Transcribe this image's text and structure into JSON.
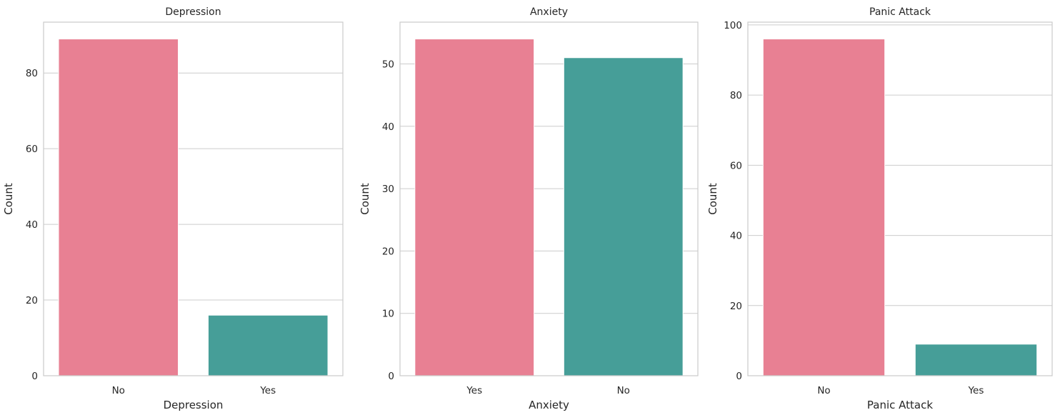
{
  "colors": {
    "bar_primary": "#e88093",
    "bar_secondary": "#469e98",
    "grid": "#cccccc",
    "text": "#262626"
  },
  "chart_data": [
    {
      "type": "bar",
      "title": "Depression",
      "xlabel": "Depression",
      "ylabel": "Count",
      "categories": [
        "No",
        "Yes"
      ],
      "values": [
        89,
        16
      ],
      "ylim": [
        0,
        93.45
      ],
      "yticks": [
        0,
        20,
        40,
        60,
        80
      ],
      "grid": true,
      "bar_colors": [
        "#e88093",
        "#469e98"
      ]
    },
    {
      "type": "bar",
      "title": "Anxiety",
      "xlabel": "Anxiety",
      "ylabel": "Count",
      "categories": [
        "Yes",
        "No"
      ],
      "values": [
        54,
        51
      ],
      "ylim": [
        0,
        56.7
      ],
      "yticks": [
        0,
        10,
        20,
        30,
        40,
        50
      ],
      "grid": true,
      "bar_colors": [
        "#e88093",
        "#469e98"
      ]
    },
    {
      "type": "bar",
      "title": "Panic Attack",
      "xlabel": "Panic Attack",
      "ylabel": "Count",
      "categories": [
        "No",
        "Yes"
      ],
      "values": [
        96,
        9
      ],
      "ylim": [
        0,
        100.8
      ],
      "yticks": [
        0,
        20,
        40,
        60,
        80,
        100
      ],
      "grid": true,
      "bar_colors": [
        "#e88093",
        "#469e98"
      ]
    }
  ]
}
